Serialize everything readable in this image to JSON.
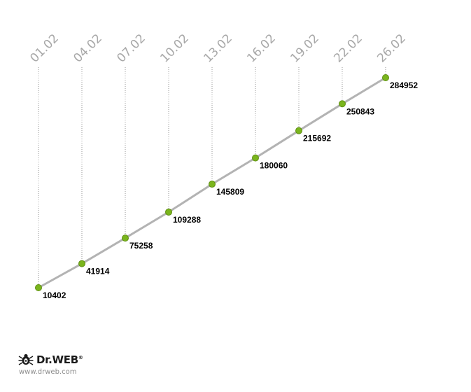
{
  "chart_data": {
    "type": "line",
    "categories": [
      "01.02",
      "04.02",
      "07.02",
      "10.02",
      "13.02",
      "16.02",
      "19.02",
      "22.02",
      "26.02"
    ],
    "values": [
      10402,
      41914,
      75258,
      109288,
      145809,
      180060,
      215692,
      250843,
      284952
    ],
    "title": "",
    "xlabel": "",
    "ylabel": "",
    "grid": false,
    "legend": "none",
    "colors": {
      "line": "#b3b3b3",
      "point": "#7ab51d",
      "tick_label": "#a8a8a8",
      "data_label": "#000000"
    }
  },
  "brand": {
    "name": "Dr.WEB",
    "registered": "®",
    "url": "www.drweb.com",
    "icon": "spider-bug-icon"
  }
}
